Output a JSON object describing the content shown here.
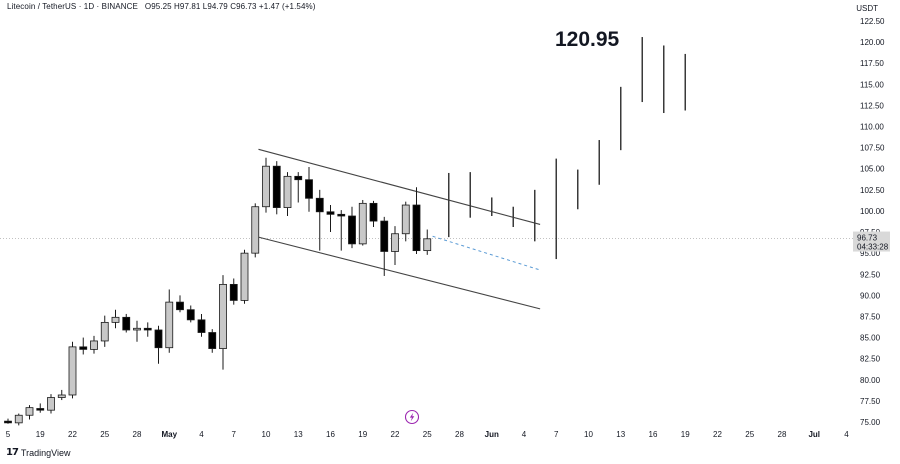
{
  "header": {
    "symbol": "Litecoin / TetherUS",
    "interval": "1D",
    "exchange": "BINANCE",
    "open": "O95.25",
    "high": "H97.81",
    "low": "L94.79",
    "close": "C96.73",
    "change": "+1.47 (+1.54%)"
  },
  "currency": "USDT",
  "annotation": "120.95",
  "price_label": {
    "price": "96.73",
    "countdown": "04:33:28"
  },
  "footer": {
    "brand": "TradingView"
  },
  "colors": {
    "up_candle": "#c8c8c8",
    "down_candle": "#000000",
    "wick": "#1a1a1a",
    "channel": "#444444",
    "projection": "#5b9bd5",
    "price_label_bg": "#d9d9d9",
    "crosshair": "#9e9e9e",
    "flash_icon": "#9c27b0"
  },
  "chart_data": {
    "type": "candlestick",
    "y_axis": {
      "ticks": [
        "122.50",
        "120.00",
        "117.50",
        "115.00",
        "112.50",
        "110.00",
        "107.50",
        "105.00",
        "102.50",
        "100.00",
        "97.50",
        "95.00",
        "92.50",
        "90.00",
        "87.50",
        "85.00",
        "82.50",
        "80.00",
        "77.50",
        "75.00"
      ],
      "ylim": [
        74.5,
        123.5
      ],
      "position": "right"
    },
    "x_axis": {
      "ticks": [
        {
          "label": "5",
          "i": 0
        },
        {
          "label": "19",
          "i": 3
        },
        {
          "label": "22",
          "i": 6
        },
        {
          "label": "25",
          "i": 9
        },
        {
          "label": "28",
          "i": 12
        },
        {
          "label": "May",
          "i": 15,
          "bold": true
        },
        {
          "label": "4",
          "i": 18
        },
        {
          "label": "7",
          "i": 21
        },
        {
          "label": "10",
          "i": 24
        },
        {
          "label": "13",
          "i": 27
        },
        {
          "label": "16",
          "i": 30
        },
        {
          "label": "19",
          "i": 33
        },
        {
          "label": "22",
          "i": 36
        },
        {
          "label": "25",
          "i": 39
        },
        {
          "label": "28",
          "i": 42
        },
        {
          "label": "Jun",
          "i": 45,
          "bold": true
        },
        {
          "label": "4",
          "i": 48
        },
        {
          "label": "7",
          "i": 51
        },
        {
          "label": "10",
          "i": 54
        },
        {
          "label": "13",
          "i": 57
        },
        {
          "label": "16",
          "i": 60
        },
        {
          "label": "19",
          "i": 63
        },
        {
          "label": "22",
          "i": 66
        },
        {
          "label": "25",
          "i": 69
        },
        {
          "label": "28",
          "i": 72
        },
        {
          "label": "Jul",
          "i": 75,
          "bold": true
        },
        {
          "label": "4",
          "i": 78
        }
      ]
    },
    "candles": [
      {
        "i": 0,
        "o": 75.1,
        "h": 75.4,
        "l": 74.8,
        "c": 74.9
      },
      {
        "i": 1,
        "o": 74.9,
        "h": 76.0,
        "l": 74.6,
        "c": 75.8
      },
      {
        "i": 2,
        "o": 75.8,
        "h": 77.0,
        "l": 75.3,
        "c": 76.7
      },
      {
        "i": 3,
        "o": 76.6,
        "h": 77.2,
        "l": 76.1,
        "c": 76.4
      },
      {
        "i": 4,
        "o": 76.4,
        "h": 78.3,
        "l": 76.0,
        "c": 77.9
      },
      {
        "i": 5,
        "o": 77.9,
        "h": 78.8,
        "l": 77.6,
        "c": 78.2
      },
      {
        "i": 6,
        "o": 78.2,
        "h": 84.5,
        "l": 77.8,
        "c": 83.9
      },
      {
        "i": 7,
        "o": 83.9,
        "h": 85.0,
        "l": 83.0,
        "c": 83.6
      },
      {
        "i": 8,
        "o": 83.6,
        "h": 85.2,
        "l": 83.1,
        "c": 84.6
      },
      {
        "i": 9,
        "o": 84.6,
        "h": 87.6,
        "l": 83.9,
        "c": 86.8
      },
      {
        "i": 10,
        "o": 86.8,
        "h": 88.3,
        "l": 86.1,
        "c": 87.4
      },
      {
        "i": 11,
        "o": 87.4,
        "h": 87.8,
        "l": 85.6,
        "c": 85.9
      },
      {
        "i": 12,
        "o": 85.9,
        "h": 87.0,
        "l": 84.5,
        "c": 86.1
      },
      {
        "i": 13,
        "o": 86.1,
        "h": 86.8,
        "l": 85.1,
        "c": 85.9
      },
      {
        "i": 14,
        "o": 85.9,
        "h": 86.4,
        "l": 81.9,
        "c": 83.8
      },
      {
        "i": 15,
        "o": 83.8,
        "h": 90.7,
        "l": 83.2,
        "c": 89.2
      },
      {
        "i": 16,
        "o": 89.2,
        "h": 90.0,
        "l": 88.0,
        "c": 88.3
      },
      {
        "i": 17,
        "o": 88.3,
        "h": 88.8,
        "l": 86.8,
        "c": 87.1
      },
      {
        "i": 18,
        "o": 87.1,
        "h": 87.8,
        "l": 85.1,
        "c": 85.6
      },
      {
        "i": 19,
        "o": 85.6,
        "h": 86.0,
        "l": 83.2,
        "c": 83.7
      },
      {
        "i": 20,
        "o": 83.7,
        "h": 92.4,
        "l": 81.2,
        "c": 91.3
      },
      {
        "i": 21,
        "o": 91.3,
        "h": 92.0,
        "l": 88.9,
        "c": 89.4
      },
      {
        "i": 22,
        "o": 89.4,
        "h": 95.4,
        "l": 89.0,
        "c": 95.0
      },
      {
        "i": 23,
        "o": 95.0,
        "h": 100.9,
        "l": 94.5,
        "c": 100.5
      },
      {
        "i": 24,
        "o": 100.5,
        "h": 106.3,
        "l": 99.8,
        "c": 105.3
      },
      {
        "i": 25,
        "o": 105.3,
        "h": 105.9,
        "l": 99.6,
        "c": 100.4
      },
      {
        "i": 26,
        "o": 100.4,
        "h": 104.6,
        "l": 99.4,
        "c": 104.1
      },
      {
        "i": 27,
        "o": 104.1,
        "h": 104.6,
        "l": 101.0,
        "c": 103.7
      },
      {
        "i": 28,
        "o": 103.7,
        "h": 105.2,
        "l": 99.9,
        "c": 101.5
      },
      {
        "i": 29,
        "o": 101.5,
        "h": 102.5,
        "l": 95.3,
        "c": 99.9
      },
      {
        "i": 30,
        "o": 99.9,
        "h": 100.7,
        "l": 97.5,
        "c": 99.6
      },
      {
        "i": 31,
        "o": 99.6,
        "h": 100.1,
        "l": 95.3,
        "c": 99.4
      },
      {
        "i": 32,
        "o": 99.4,
        "h": 100.5,
        "l": 95.6,
        "c": 96.1
      },
      {
        "i": 33,
        "o": 96.1,
        "h": 101.3,
        "l": 95.9,
        "c": 100.9
      },
      {
        "i": 34,
        "o": 100.9,
        "h": 101.2,
        "l": 98.1,
        "c": 98.8
      },
      {
        "i": 35,
        "o": 98.8,
        "h": 99.3,
        "l": 92.3,
        "c": 95.2
      },
      {
        "i": 36,
        "o": 95.2,
        "h": 98.2,
        "l": 93.6,
        "c": 97.3
      },
      {
        "i": 37,
        "o": 97.3,
        "h": 101.1,
        "l": 96.4,
        "c": 100.7
      },
      {
        "i": 38,
        "o": 100.7,
        "h": 102.8,
        "l": 94.9,
        "c": 95.3
      },
      {
        "i": 39,
        "o": 95.3,
        "h": 97.8,
        "l": 94.8,
        "c": 96.7
      }
    ],
    "projection_bars": [
      {
        "i": 41,
        "h": 104.5,
        "l": 96.9
      },
      {
        "i": 43,
        "h": 104.6,
        "l": 99.2
      },
      {
        "i": 45,
        "h": 101.6,
        "l": 99.4
      },
      {
        "i": 47,
        "h": 100.5,
        "l": 98.1
      },
      {
        "i": 49,
        "h": 102.5,
        "l": 96.4
      },
      {
        "i": 51,
        "h": 106.2,
        "l": 94.3
      },
      {
        "i": 53,
        "h": 104.9,
        "l": 100.2
      },
      {
        "i": 55,
        "h": 108.4,
        "l": 103.1
      },
      {
        "i": 57,
        "h": 114.7,
        "l": 107.2
      },
      {
        "i": 59,
        "h": 120.6,
        "l": 112.9
      },
      {
        "i": 61,
        "h": 119.6,
        "l": 111.6
      },
      {
        "i": 63,
        "h": 118.6,
        "l": 111.9
      }
    ],
    "channel_lines": [
      {
        "x1": 23.3,
        "y1": 107.3,
        "x2": 49.5,
        "y2": 98.4
      },
      {
        "x1": 23.3,
        "y1": 96.9,
        "x2": 49.5,
        "y2": 88.4
      }
    ],
    "projection_line": {
      "x1": 39.5,
      "y1": 97.0,
      "x2": 49.5,
      "y2": 93.0
    },
    "last_price": 96.73
  }
}
